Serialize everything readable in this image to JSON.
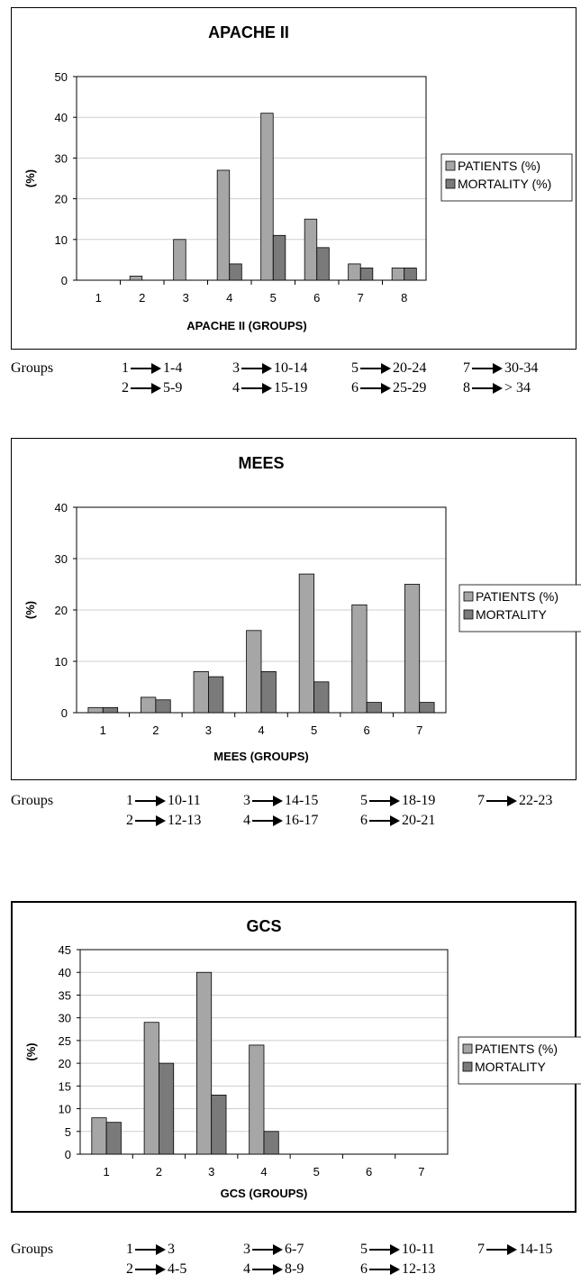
{
  "chart_data": [
    {
      "type": "bar",
      "title": "APACHE II",
      "xlabel": "APACHE II (GROUPS)",
      "ylabel": "(%)",
      "categories": [
        "1",
        "2",
        "3",
        "4",
        "5",
        "6",
        "7",
        "8"
      ],
      "series": [
        {
          "name": "PATIENTS (%)",
          "values": [
            0,
            1,
            10,
            27,
            41,
            15,
            4,
            3
          ],
          "color": "#a6a6a6"
        },
        {
          "name": "MORTALITY (%)",
          "values": [
            0,
            0,
            0,
            4,
            11,
            8,
            3,
            3
          ],
          "color": "#7a7a7a"
        }
      ],
      "ylim": [
        0,
        50
      ],
      "yticks": [
        "0",
        "10",
        "20",
        "30",
        "40",
        "50"
      ],
      "grid": true,
      "legend": "right",
      "groups_label": "Groups",
      "groups": [
        {
          "id": "1",
          "range": "1-4"
        },
        {
          "id": "2",
          "range": "5-9"
        },
        {
          "id": "3",
          "range": "10-14"
        },
        {
          "id": "4",
          "range": "15-19"
        },
        {
          "id": "5",
          "range": "20-24"
        },
        {
          "id": "6",
          "range": "25-29"
        },
        {
          "id": "7",
          "range": "30-34"
        },
        {
          "id": "8",
          "range": "> 34"
        }
      ]
    },
    {
      "type": "bar",
      "title": "MEES",
      "xlabel": "MEES (GROUPS)",
      "ylabel": "(%)",
      "categories": [
        "1",
        "2",
        "3",
        "4",
        "5",
        "6",
        "7"
      ],
      "series": [
        {
          "name": "PATIENTS (%)",
          "values": [
            1,
            3,
            8,
            16,
            27,
            21,
            25
          ],
          "color": "#a6a6a6"
        },
        {
          "name": "MORTALITY",
          "values": [
            1,
            2.5,
            7,
            8,
            6,
            2,
            2
          ],
          "color": "#7a7a7a"
        }
      ],
      "ylim": [
        0,
        40
      ],
      "yticks": [
        "0",
        "10",
        "20",
        "30",
        "40"
      ],
      "grid": true,
      "legend": "right",
      "groups_label": "Groups",
      "groups": [
        {
          "id": "1",
          "range": "10-11"
        },
        {
          "id": "2",
          "range": "12-13"
        },
        {
          "id": "3",
          "range": "14-15"
        },
        {
          "id": "4",
          "range": "16-17"
        },
        {
          "id": "5",
          "range": "18-19"
        },
        {
          "id": "6",
          "range": "20-21"
        },
        {
          "id": "7",
          "range": "22-23"
        }
      ]
    },
    {
      "type": "bar",
      "title": "GCS",
      "xlabel": "GCS (GROUPS)",
      "ylabel": "(%)",
      "categories": [
        "1",
        "2",
        "3",
        "4",
        "5",
        "6",
        "7"
      ],
      "series": [
        {
          "name": "PATIENTS (%)",
          "values": [
            8,
            29,
            40,
            24,
            0,
            0,
            0
          ],
          "color": "#a6a6a6"
        },
        {
          "name": "MORTALITY",
          "values": [
            7,
            20,
            13,
            5,
            0,
            0,
            0
          ],
          "color": "#7a7a7a"
        }
      ],
      "ylim": [
        0,
        45
      ],
      "yticks": [
        "0",
        "5",
        "10",
        "15",
        "20",
        "25",
        "30",
        "35",
        "40",
        "45"
      ],
      "grid": true,
      "legend": "right",
      "groups_label": "Groups",
      "groups": [
        {
          "id": "1",
          "range": "3"
        },
        {
          "id": "2",
          "range": "4-5"
        },
        {
          "id": "3",
          "range": "6-7"
        },
        {
          "id": "4",
          "range": "8-9"
        },
        {
          "id": "5",
          "range": "10-11"
        },
        {
          "id": "6",
          "range": "12-13"
        },
        {
          "id": "7",
          "range": "14-15"
        }
      ]
    }
  ]
}
